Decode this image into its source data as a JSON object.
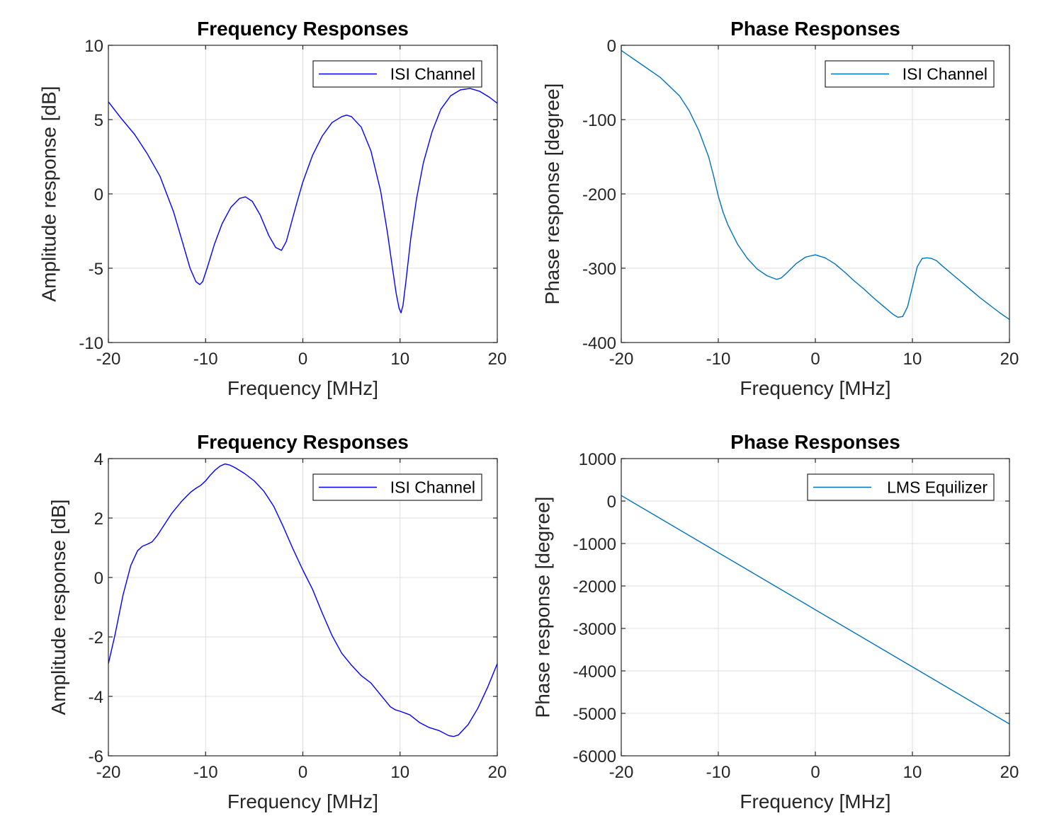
{
  "figure": {
    "background": "#ffffff"
  },
  "chart_data": [
    {
      "type": "line",
      "title": "Frequency Responses",
      "xlabel": "Frequency [MHz]",
      "ylabel": "Amplitude response [dB]",
      "xlim": [
        -20,
        20
      ],
      "ylim": [
        -10,
        10
      ],
      "xticks": [
        -20,
        -10,
        0,
        10,
        20
      ],
      "yticks": [
        -10,
        -5,
        0,
        5,
        10
      ],
      "xtick_labels": [
        "-20",
        "-10",
        "0",
        "10",
        "20"
      ],
      "ytick_labels": [
        "-10",
        "-5",
        "0",
        "5",
        "10"
      ],
      "grid": true,
      "legend_position": "top-right",
      "series": [
        {
          "name": "ISI Channel",
          "color": "#0000ff",
          "x": [
            -20,
            -18.7,
            -17.3,
            -16,
            -14.7,
            -13.3,
            -12.4,
            -11.6,
            -11,
            -10.6,
            -10.3,
            -9.8,
            -9.1,
            -8.3,
            -7.4,
            -6.5,
            -5.9,
            -5.2,
            -4.4,
            -3.5,
            -2.8,
            -2.2,
            -1.7,
            -1.2,
            -0.7,
            0,
            1,
            2,
            3,
            4,
            4.5,
            5,
            6,
            7,
            8,
            8.7,
            9.2,
            9.6,
            9.9,
            10.1,
            10.3,
            10.6,
            11.1,
            11.7,
            12.4,
            13.3,
            14.2,
            15.2,
            16.2,
            17.2,
            18.2,
            19.2,
            20
          ],
          "y": [
            6.2,
            5.1,
            4.0,
            2.7,
            1.2,
            -1.2,
            -3.2,
            -5.0,
            -5.9,
            -6.1,
            -5.9,
            -4.9,
            -3.4,
            -2.0,
            -0.9,
            -0.3,
            -0.2,
            -0.5,
            -1.4,
            -2.8,
            -3.6,
            -3.8,
            -3.2,
            -2.0,
            -0.8,
            0.8,
            2.6,
            3.9,
            4.8,
            5.2,
            5.3,
            5.2,
            4.5,
            2.9,
            0.2,
            -2.6,
            -4.9,
            -6.7,
            -7.7,
            -8.0,
            -7.5,
            -5.9,
            -3.0,
            -0.3,
            2.1,
            4.2,
            5.7,
            6.6,
            7.0,
            7.1,
            6.9,
            6.5,
            6.1
          ]
        }
      ]
    },
    {
      "type": "line",
      "title": "Phase Responses",
      "xlabel": "Frequency [MHz]",
      "ylabel": "Phase response [degree]",
      "xlim": [
        -20,
        20
      ],
      "ylim": [
        -400,
        0
      ],
      "xticks": [
        -20,
        -10,
        0,
        10,
        20
      ],
      "yticks": [
        -400,
        -300,
        -200,
        -100,
        0
      ],
      "xtick_labels": [
        "-20",
        "-10",
        "0",
        "10",
        "20"
      ],
      "ytick_labels": [
        "-400",
        "-300",
        "-200",
        "-100",
        "0"
      ],
      "grid": true,
      "legend_position": "top-right",
      "series": [
        {
          "name": "ISI Channel",
          "color": "#0072bd",
          "x": [
            -20,
            -18,
            -16,
            -14,
            -13,
            -12,
            -11,
            -10.5,
            -10,
            -9.5,
            -9,
            -8,
            -7,
            -6,
            -5,
            -4,
            -3.5,
            -3,
            -2,
            -1,
            0,
            1,
            2,
            3,
            4,
            5,
            6,
            7,
            8,
            8.5,
            9,
            9.5,
            10,
            10.5,
            11,
            11.5,
            12,
            12.5,
            13,
            14,
            15,
            16,
            17,
            18,
            19,
            20
          ],
          "y": [
            -7,
            -25,
            -43,
            -68,
            -88,
            -115,
            -150,
            -175,
            -203,
            -225,
            -242,
            -268,
            -287,
            -301,
            -310,
            -315,
            -313,
            -307,
            -294,
            -285,
            -282,
            -286,
            -294,
            -305,
            -317,
            -328,
            -340,
            -351,
            -362,
            -366,
            -365,
            -352,
            -325,
            -298,
            -287,
            -286,
            -287,
            -290,
            -296,
            -307,
            -318,
            -329,
            -340,
            -350,
            -360,
            -369
          ]
        }
      ]
    },
    {
      "type": "line",
      "title": "Frequency Responses",
      "xlabel": "Frequency [MHz]",
      "ylabel": "Amplitude response [dB]",
      "xlim": [
        -20,
        20
      ],
      "ylim": [
        -6,
        4
      ],
      "xticks": [
        -20,
        -10,
        0,
        10,
        20
      ],
      "yticks": [
        -6,
        -4,
        -2,
        0,
        2,
        4
      ],
      "xtick_labels": [
        "-20",
        "-10",
        "0",
        "10",
        "20"
      ],
      "ytick_labels": [
        "-6",
        "-4",
        "-2",
        "0",
        "2",
        "4"
      ],
      "grid": true,
      "legend_position": "top-right",
      "series": [
        {
          "name": "ISI Channel",
          "color": "#0000ff",
          "x": [
            -20,
            -19.3,
            -18.5,
            -17.7,
            -17,
            -16.5,
            -16,
            -15.5,
            -15,
            -14.5,
            -14,
            -13.5,
            -13,
            -12.5,
            -12,
            -11.5,
            -11,
            -10.5,
            -10,
            -9.5,
            -9,
            -8.5,
            -8,
            -7.5,
            -7,
            -6,
            -5,
            -4,
            -3,
            -2,
            -1,
            0,
            1,
            2,
            3,
            4,
            5,
            6,
            7,
            8,
            9,
            9.5,
            10,
            11,
            12,
            13,
            14,
            15,
            15.5,
            16,
            17,
            18,
            19,
            20
          ],
          "y": [
            -2.9,
            -1.9,
            -0.6,
            0.4,
            0.9,
            1.05,
            1.12,
            1.2,
            1.4,
            1.65,
            1.9,
            2.15,
            2.35,
            2.55,
            2.72,
            2.88,
            3.0,
            3.1,
            3.25,
            3.45,
            3.62,
            3.75,
            3.82,
            3.78,
            3.7,
            3.5,
            3.25,
            2.9,
            2.4,
            1.7,
            0.95,
            0.25,
            -0.4,
            -1.2,
            -1.95,
            -2.55,
            -2.95,
            -3.3,
            -3.55,
            -3.95,
            -4.35,
            -4.45,
            -4.5,
            -4.62,
            -4.88,
            -5.05,
            -5.15,
            -5.32,
            -5.35,
            -5.3,
            -4.95,
            -4.4,
            -3.7,
            -2.9
          ]
        }
      ]
    },
    {
      "type": "line",
      "title": "Phase Responses",
      "xlabel": "Frequency [MHz]",
      "ylabel": "Phase response [degree]",
      "xlim": [
        -20,
        20
      ],
      "ylim": [
        -6000,
        1000
      ],
      "xticks": [
        -20,
        -10,
        0,
        10,
        20
      ],
      "yticks": [
        -6000,
        -5000,
        -4000,
        -3000,
        -2000,
        -1000,
        0,
        1000
      ],
      "xtick_labels": [
        "-20",
        "-10",
        "0",
        "10",
        "20"
      ],
      "ytick_labels": [
        "-6000",
        "-5000",
        "-4000",
        "-3000",
        "-2000",
        "-1000",
        "0",
        "1000"
      ],
      "grid": true,
      "legend_position": "top-right",
      "series": [
        {
          "name": "LMS Equilizer",
          "color": "#0072bd",
          "x": [
            -20,
            20
          ],
          "y": [
            130,
            -5250
          ]
        }
      ]
    }
  ]
}
